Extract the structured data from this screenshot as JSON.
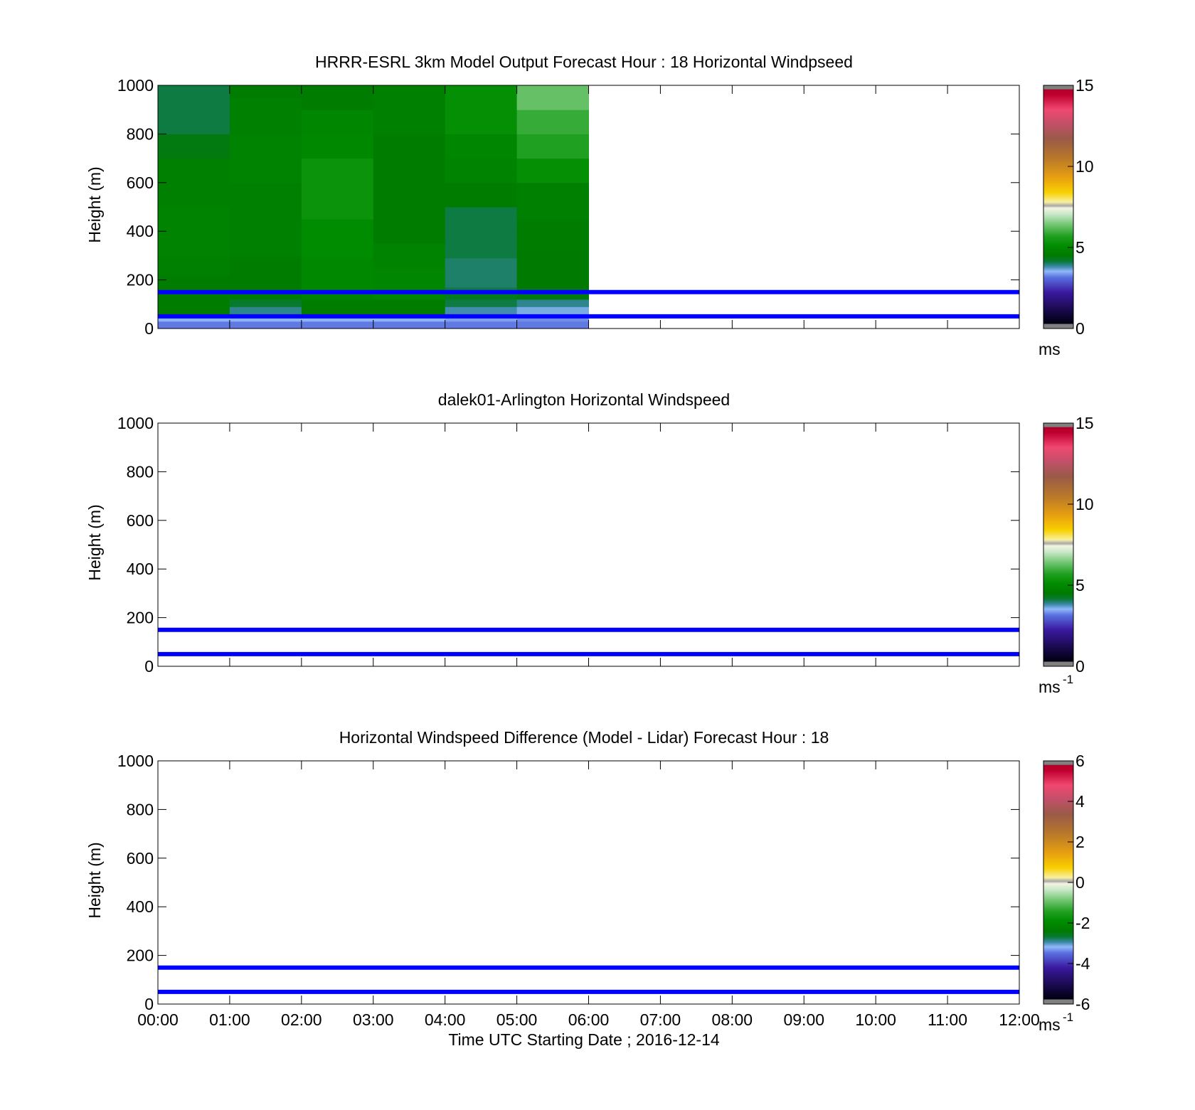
{
  "figure": {
    "xlabel": "Time UTC  Starting Date ; 2016-12-14",
    "x_ticks": [
      "00:00",
      "01:00",
      "02:00",
      "03:00",
      "04:00",
      "05:00",
      "06:00",
      "07:00",
      "08:00",
      "09:00",
      "10:00",
      "11:00",
      "12:00"
    ],
    "line_color": "#0000ff"
  },
  "chart_data": [
    {
      "type": "heatmap",
      "title": "HRRR-ESRL 3km Model Output   Forecast Hour : 18 Horizontal Windpseed",
      "ylabel": "Height (m)",
      "ylim": [
        0,
        1000
      ],
      "y_ticks": [
        0,
        200,
        400,
        600,
        800,
        1000
      ],
      "xlim": [
        "00:00",
        "12:00"
      ],
      "colorbar": {
        "ticks": [
          0,
          5,
          10,
          15
        ],
        "range": [
          0,
          15
        ],
        "unit": "ms",
        "unit_superscript": ""
      },
      "heights": [
        30,
        60,
        90,
        120,
        150,
        170,
        200,
        220,
        250,
        290,
        320,
        350,
        400,
        450,
        500,
        550,
        600,
        650,
        700,
        750,
        800,
        850,
        900,
        950,
        1000
      ],
      "columns": [
        {
          "start": "00:00",
          "end": "01:00",
          "values": [
            3.2,
            3.5,
            4.6,
            4.6,
            4.6,
            4.6,
            4.6,
            4.6,
            4.7,
            4.7,
            4.8,
            4.8,
            4.8,
            4.8,
            4.8,
            4.7,
            4.7,
            4.7,
            4.7,
            4.4,
            4.4,
            4.1,
            4.1,
            4.1,
            4.1
          ]
        },
        {
          "start": "01:00",
          "end": "02:00",
          "values": [
            3.2,
            3.5,
            3.9,
            4.2,
            4.6,
            4.6,
            4.6,
            4.6,
            4.6,
            4.6,
            4.7,
            4.7,
            4.7,
            4.7,
            4.7,
            4.7,
            4.7,
            4.8,
            4.8,
            4.8,
            4.8,
            4.7,
            4.7,
            4.7,
            4.6
          ]
        },
        {
          "start": "02:00",
          "end": "03:00",
          "values": [
            3.2,
            3.5,
            4.6,
            4.6,
            4.8,
            5.0,
            5.0,
            5.0,
            5.0,
            5.0,
            5.1,
            5.1,
            5.1,
            5.1,
            5.3,
            5.3,
            5.3,
            5.3,
            5.3,
            5.0,
            5.0,
            4.9,
            4.9,
            4.6,
            4.6
          ]
        },
        {
          "start": "03:00",
          "end": "04:00",
          "values": [
            3.2,
            3.5,
            4.6,
            4.6,
            4.9,
            4.9,
            4.9,
            4.9,
            4.9,
            4.8,
            4.8,
            4.8,
            4.6,
            4.6,
            4.6,
            4.6,
            4.6,
            4.6,
            4.6,
            4.6,
            4.6,
            4.7,
            4.7,
            4.7,
            4.7
          ]
        },
        {
          "start": "04:00",
          "end": "05:00",
          "values": [
            3.2,
            3.4,
            3.8,
            4.1,
            4.3,
            4.1,
            4.0,
            4.0,
            4.0,
            4.0,
            4.1,
            4.1,
            4.1,
            4.1,
            4.1,
            4.6,
            4.6,
            4.8,
            4.8,
            4.9,
            4.9,
            5.2,
            5.2,
            5.2,
            5.2
          ]
        },
        {
          "start": "05:00",
          "end": "06:00",
          "values": [
            3.2,
            3.3,
            3.6,
            3.9,
            4.4,
            4.4,
            4.5,
            4.5,
            4.5,
            4.5,
            4.5,
            4.6,
            4.6,
            4.6,
            4.7,
            4.7,
            4.7,
            5.2,
            5.2,
            5.7,
            5.7,
            5.9,
            5.9,
            6.3,
            6.3
          ]
        }
      ],
      "hlines": [
        50,
        150
      ]
    },
    {
      "type": "heatmap",
      "title": "dalek01-Arlington  Horizontal Windspeed",
      "ylabel": "Height (m)",
      "ylim": [
        0,
        1000
      ],
      "y_ticks": [
        0,
        200,
        400,
        600,
        800,
        1000
      ],
      "xlim": [
        "00:00",
        "12:00"
      ],
      "colorbar": {
        "ticks": [
          0,
          5,
          10,
          15
        ],
        "range": [
          0,
          15
        ],
        "unit": "ms",
        "unit_superscript": "-1"
      },
      "columns": [],
      "hlines": [
        50,
        150
      ]
    },
    {
      "type": "heatmap",
      "title": "Horizontal Windspeed Difference (Model - Lidar) Forecast Hour : 18",
      "ylabel": "Height (m)",
      "ylim": [
        0,
        1000
      ],
      "y_ticks": [
        0,
        200,
        400,
        600,
        800,
        1000
      ],
      "xlim": [
        "00:00",
        "12:00"
      ],
      "colorbar": {
        "ticks": [
          -6,
          -4,
          -2,
          0,
          2,
          4,
          6
        ],
        "range": [
          -6,
          6
        ],
        "unit": "ms",
        "unit_superscript": "-1"
      },
      "columns": [],
      "hlines": [
        50,
        150
      ]
    }
  ]
}
